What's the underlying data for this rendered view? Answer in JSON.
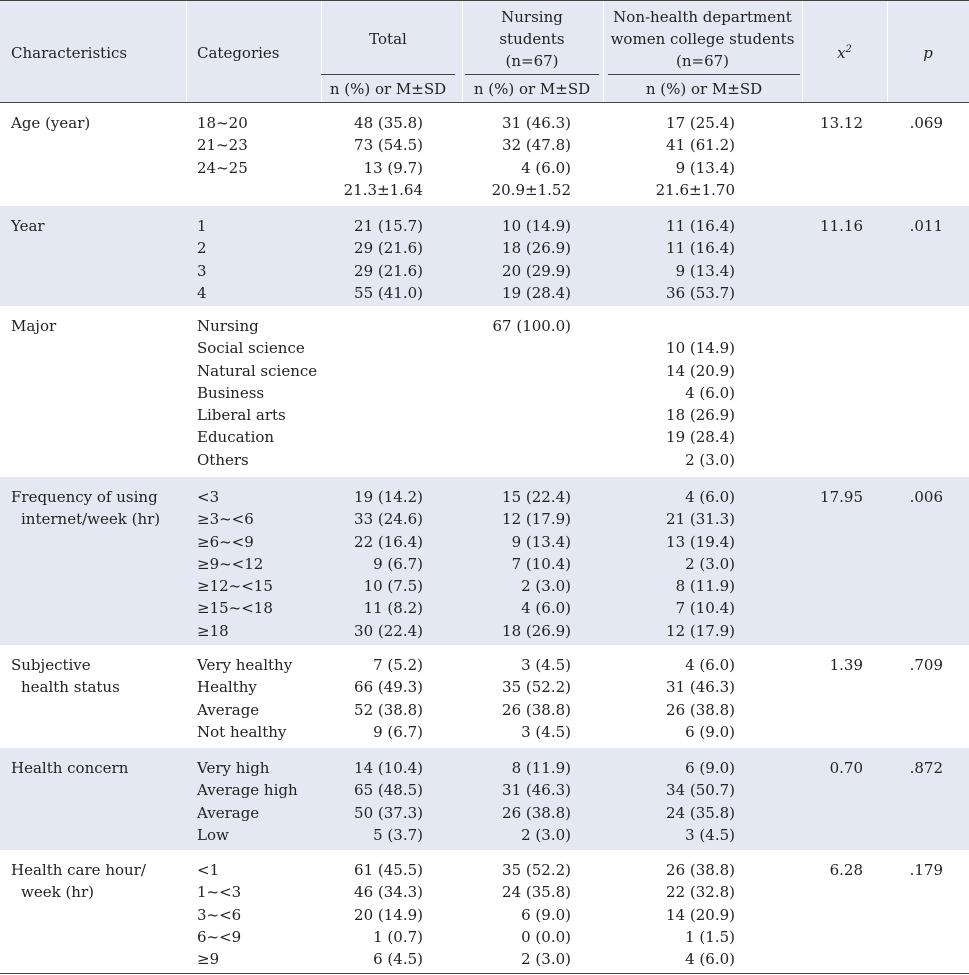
{
  "header": {
    "characteristics": "Characteristics",
    "categories": "Categories",
    "total": "Total",
    "nursing_line1": "Nursing",
    "nursing_line2": "students",
    "nursing_line3": "(n=67)",
    "nonhealth_line1": "Non-health department",
    "nonhealth_line2": "women college students",
    "nonhealth_line3": "(n=67)",
    "chi_base": "x",
    "chi_sup": "2",
    "p": "p",
    "sub_total": "n (%) or  M±SD",
    "sub_nursing": "n (%) or  M±SD",
    "sub_nonhealth": "n (%) or  M±SD"
  },
  "groups": [
    {
      "char": [
        "Age (year)"
      ],
      "cats": [
        "18~20",
        "21~23",
        "24~25",
        ""
      ],
      "total": [
        "48 (35.8)",
        "73 (54.5)",
        "13 (9.7)",
        "21.3±1.64"
      ],
      "nursing": [
        "31 (46.3)",
        "32 (47.8)",
        "4 (6.0)",
        "20.9±1.52"
      ],
      "nonhealth": [
        "17 (25.4)",
        "41 (61.2)",
        "9 (13.4)",
        "21.6±1.70"
      ],
      "chi": "13.12",
      "p": ".069"
    },
    {
      "char": [
        "Year"
      ],
      "cats": [
        "1",
        "2",
        "3",
        "4"
      ],
      "total": [
        "21 (15.7)",
        "29 (21.6)",
        "29 (21.6)",
        "55 (41.0)"
      ],
      "nursing": [
        "10 (14.9)",
        "18 (26.9)",
        "20 (29.9)",
        "19 (28.4)"
      ],
      "nonhealth": [
        "11 (16.4)",
        "11 (16.4)",
        "9 (13.4)",
        "36 (53.7)"
      ],
      "chi": "11.16",
      "p": ".011"
    },
    {
      "char": [
        "Major"
      ],
      "cats": [
        "Nursing",
        "Social science",
        "Natural science",
        "Business",
        "Liberal arts",
        "Education",
        "Others"
      ],
      "total": [
        "",
        "",
        "",
        "",
        "",
        "",
        ""
      ],
      "nursing": [
        "67 (100.0)",
        "",
        "",
        "",
        "",
        "",
        ""
      ],
      "nonhealth": [
        "",
        "10 (14.9)",
        "14 (20.9)",
        "4 (6.0)",
        "18 (26.9)",
        "19 (28.4)",
        "2 (3.0)"
      ],
      "chi": "",
      "p": ""
    },
    {
      "char": [
        "Frequency of using",
        "internet/week (hr)"
      ],
      "cats": [
        "<3",
        "≥3~<6",
        "≥6~<9",
        "≥9~<12",
        "≥12~<15",
        "≥15~<18",
        "≥18"
      ],
      "total": [
        "19 (14.2)",
        "33 (24.6)",
        "22 (16.4)",
        "9 (6.7)",
        "10 (7.5)",
        "11 (8.2)",
        "30 (22.4)"
      ],
      "nursing": [
        "15 (22.4)",
        "12 (17.9)",
        "9 (13.4)",
        "7 (10.4)",
        "2 (3.0)",
        "4 (6.0)",
        "18 (26.9)"
      ],
      "nonhealth": [
        "4 (6.0)",
        "21 (31.3)",
        "13 (19.4)",
        "2 (3.0)",
        "8 (11.9)",
        "7 (10.4)",
        "12 (17.9)"
      ],
      "chi": "17.95",
      "p": ".006"
    },
    {
      "char": [
        "Subjective",
        "health status"
      ],
      "cats": [
        "Very healthy",
        "Healthy",
        "Average",
        "Not healthy"
      ],
      "total": [
        "7 (5.2)",
        "66 (49.3)",
        "52 (38.8)",
        "9 (6.7)"
      ],
      "nursing": [
        "3 (4.5)",
        "35 (52.2)",
        "26 (38.8)",
        "3 (4.5)"
      ],
      "nonhealth": [
        "4 (6.0)",
        "31 (46.3)",
        "26 (38.8)",
        "6 (9.0)"
      ],
      "chi": "1.39",
      "p": ".709"
    },
    {
      "char": [
        "Health concern"
      ],
      "cats": [
        "Very high",
        "Average high",
        "Average",
        "Low"
      ],
      "total": [
        "14 (10.4)",
        "65 (48.5)",
        "50 (37.3)",
        "5 (3.7)"
      ],
      "nursing": [
        "8 (11.9)",
        "31 (46.3)",
        "26 (38.8)",
        "2 (3.0)"
      ],
      "nonhealth": [
        "6 (9.0)",
        "34 (50.7)",
        "24 (35.8)",
        "3 (4.5)"
      ],
      "chi": "0.70",
      "p": ".872"
    },
    {
      "char": [
        "Health care hour/",
        "week (hr)"
      ],
      "cats": [
        "<1",
        "1~<3",
        "3~<6",
        "6~<9",
        "≥9"
      ],
      "total": [
        "61 (45.5)",
        "46 (34.3)",
        "20 (14.9)",
        "1 (0.7)",
        "6 (4.5)"
      ],
      "nursing": [
        "35 (52.2)",
        "24 (35.8)",
        "6 (9.0)",
        "0 (0.0)",
        "2 (3.0)"
      ],
      "nonhealth": [
        "26 (38.8)",
        "22 (32.8)",
        "14 (20.9)",
        "1 (1.5)",
        "4 (6.0)"
      ],
      "chi": "6.28",
      "p": ".179"
    }
  ]
}
